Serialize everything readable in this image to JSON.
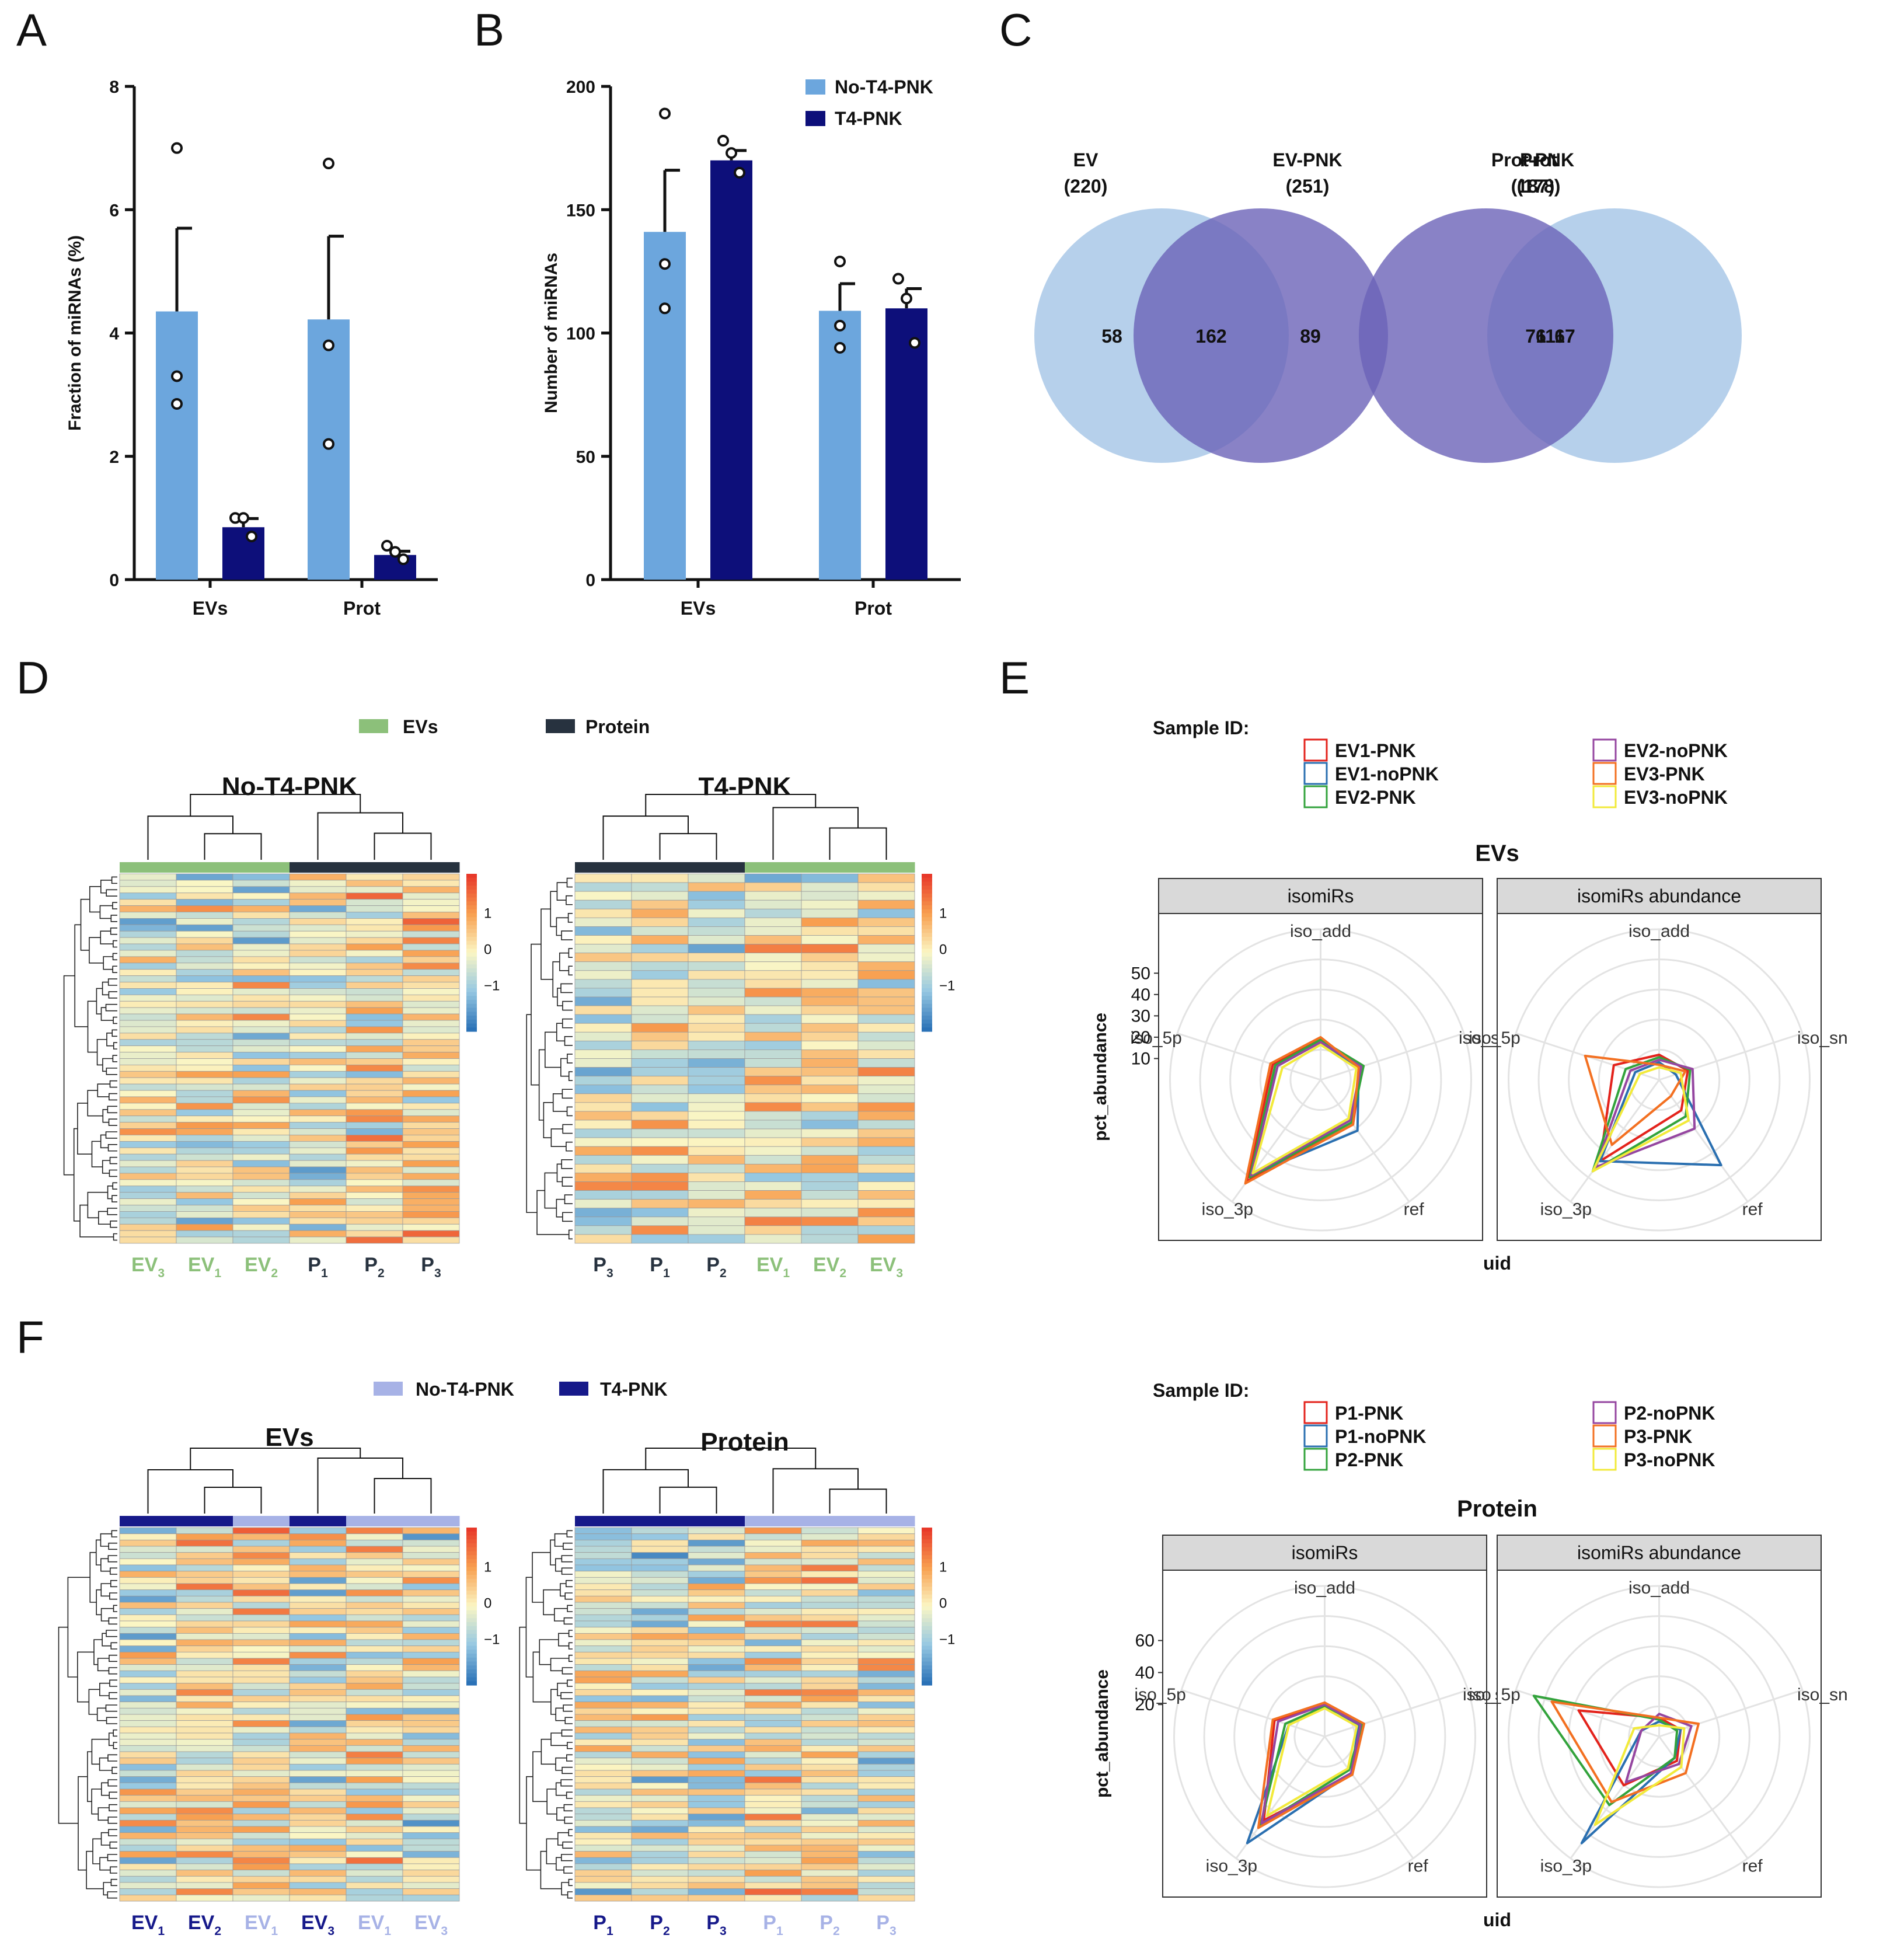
{
  "colors": {
    "light_blue": "#6ca6dd",
    "navy": "#0d0f7a",
    "ev_green": "#8cc07a",
    "protein_dark": "#27323f",
    "venn_left": "#a9c8e7",
    "venn_right": "#6b63b8",
    "nopnk_light": "#a7b2e6",
    "pnk_dark": "#16198a",
    "heat_high": "#e8392a",
    "heat_mid": "#fbf6c4",
    "heat_low": "#2b72b7",
    "series": {
      "EV1-PNK": "#e3231c",
      "EV1-noPNK": "#2a6fb0",
      "EV2-PNK": "#33a33c",
      "EV2-noPNK": "#9546a0",
      "EV3-PNK": "#f37021",
      "EV3-noPNK": "#f2ea3a",
      "P1-PNK": "#e3231c",
      "P1-noPNK": "#2a6fb0",
      "P2-PNK": "#33a33c",
      "P2-noPNK": "#9546a0",
      "P3-PNK": "#f37021",
      "P3-noPNK": "#f2ea3a"
    }
  },
  "panel_labels": [
    "A",
    "B",
    "C",
    "D",
    "E",
    "F"
  ],
  "chart_data": [
    {
      "id": "A",
      "type": "bar",
      "categories": [
        "EVs",
        "Prot"
      ],
      "series": [
        {
          "name": "No-T4-PNK",
          "values": [
            4.35,
            4.22
          ],
          "sem": [
            1.35,
            1.35
          ],
          "points": [
            [
              7.0,
              3.3,
              2.85
            ],
            [
              6.75,
              3.8,
              2.2
            ]
          ]
        },
        {
          "name": "T4-PNK",
          "values": [
            0.85,
            0.4
          ],
          "sem": [
            0.14,
            0.06
          ],
          "points": [
            [
              1.0,
              1.0,
              0.7
            ],
            [
              0.55,
              0.45,
              0.33
            ]
          ]
        }
      ],
      "ylabel": "Fraction of miRNAs (%)",
      "ylim": [
        0,
        8
      ],
      "yticks": [
        0,
        2,
        4,
        6,
        8
      ]
    },
    {
      "id": "B",
      "type": "bar",
      "categories": [
        "EVs",
        "Prot"
      ],
      "series": [
        {
          "name": "No-T4-PNK",
          "values": [
            141,
            109
          ],
          "sem": [
            25,
            11
          ],
          "points": [
            [
              189,
              128,
              110
            ],
            [
              129,
              103,
              94
            ]
          ]
        },
        {
          "name": "T4-PNK",
          "values": [
            170,
            110
          ],
          "sem": [
            4,
            8
          ],
          "points": [
            [
              178,
              173,
              165
            ],
            [
              122,
              114,
              96
            ]
          ]
        }
      ],
      "ylabel": "Number of  miRNAs",
      "ylim": [
        0,
        200
      ],
      "yticks": [
        0,
        50,
        100,
        150,
        200
      ],
      "legend": [
        "No-T4-PNK",
        "T4-PNK"
      ]
    },
    {
      "id": "C",
      "type": "venn",
      "diagrams": [
        {
          "left_label": "EV",
          "left_total": "(220)",
          "right_label": "EV-PNK",
          "right_total": "(251)",
          "left_only": "58",
          "overlap": "162",
          "right_only": "89"
        },
        {
          "left_label": "Prot",
          "left_total": "(178)",
          "right_label": "Prot-PNK",
          "right_total": "(187)",
          "left_only": "67",
          "overlap": "111",
          "right_only": "76"
        }
      ]
    },
    {
      "id": "D",
      "type": "heatmap",
      "legend": [
        "EVs",
        "Protein"
      ],
      "scale_ticks": [
        "1",
        "0",
        "−1"
      ],
      "maps": [
        {
          "title": "No-T4-PNK",
          "columns": [
            [
              "EV",
              "3"
            ],
            [
              "EV",
              "1"
            ],
            [
              "EV",
              "2"
            ],
            [
              "P",
              "1"
            ],
            [
              "P",
              "2"
            ],
            [
              "P",
              "3"
            ]
          ],
          "groups": [
            "EVs",
            "EVs",
            "EVs",
            "Protein",
            "Protein",
            "Protein"
          ],
          "rows": 58,
          "seed": 11
        },
        {
          "title": "T4-PNK",
          "columns": [
            [
              "P",
              "3"
            ],
            [
              "P",
              "1"
            ],
            [
              "P",
              "2"
            ],
            [
              "EV",
              "1"
            ],
            [
              "EV",
              "2"
            ],
            [
              "EV",
              "3"
            ]
          ],
          "groups": [
            "Protein",
            "Protein",
            "Protein",
            "EVs",
            "EVs",
            "EVs"
          ],
          "rows": 42,
          "seed": 27
        }
      ]
    },
    {
      "id": "E",
      "type": "radar",
      "title": "EVs",
      "legend_title": "Sample ID:",
      "legend": [
        "EV1-PNK",
        "EV1-noPNK",
        "EV2-PNK",
        "EV2-noPNK",
        "EV3-PNK",
        "EV3-noPNK"
      ],
      "axes": [
        "iso_add",
        "iso_snp",
        "ref",
        "iso_3p",
        "iso_5p"
      ],
      "axis_labels": [
        "iso_add",
        "iso_sn",
        "ref",
        "iso_3p",
        "iso_5p"
      ],
      "ylabel": "pct_abundance",
      "xlabel": "uid",
      "rmax": 60,
      "rticks": [
        10,
        20,
        30,
        40,
        50
      ],
      "facets": [
        {
          "title": "isomiRs",
          "series": {
            "EV1-PNK": [
              16,
              17,
              22,
              50,
              20
            ],
            "EV1-noPNK": [
              15,
              16,
              25,
              47,
              19
            ],
            "EV2-PNK": [
              16,
              18,
              21,
              48,
              19
            ],
            "EV2-noPNK": [
              15,
              17,
              20,
              47,
              18
            ],
            "EV3-PNK": [
              17,
              16,
              22,
              51,
              21
            ],
            "EV3-noPNK": [
              14,
              15,
              19,
              46,
              16
            ]
          }
        },
        {
          "title": "isomiRs abundance",
          "series": {
            "EV1-PNK": [
              10,
              12,
              15,
              40,
              19
            ],
            "EV1-noPNK": [
              7,
              7,
              42,
              40,
              10
            ],
            "EV2-PNK": [
              9,
              13,
              18,
              45,
              14
            ],
            "EV2-noPNK": [
              8,
              14,
              24,
              43,
              12
            ],
            "EV3-PNK": [
              6,
              11,
              8,
              32,
              31
            ],
            "EV3-noPNK": [
              5,
              9,
              20,
              45,
              8
            ]
          }
        }
      ]
    },
    {
      "id": "F",
      "type": "heatmap",
      "legend": [
        "No-T4-PNK",
        "T4-PNK"
      ],
      "scale_ticks": [
        "1",
        "0",
        "−1"
      ],
      "maps": [
        {
          "title": "EVs",
          "columns": [
            [
              "EV",
              "1"
            ],
            [
              "EV",
              "2"
            ],
            [
              "EV",
              "1"
            ],
            [
              "EV",
              "3"
            ],
            [
              "EV",
              "1"
            ],
            [
              "EV",
              "3"
            ]
          ],
          "groups": [
            "T4-PNK",
            "T4-PNK",
            "No-T4-PNK",
            "T4-PNK",
            "No-T4-PNK",
            "No-T4-PNK"
          ],
          "rows": 60,
          "seed": 41
        },
        {
          "title": "Protein",
          "columns": [
            [
              "P",
              "1"
            ],
            [
              "P",
              "2"
            ],
            [
              "P",
              "3"
            ],
            [
              "P",
              "1"
            ],
            [
              "P",
              "2"
            ],
            [
              "P",
              "3"
            ]
          ],
          "groups": [
            "T4-PNK",
            "T4-PNK",
            "T4-PNK",
            "No-T4-PNK",
            "No-T4-PNK",
            "No-T4-PNK"
          ],
          "rows": 60,
          "seed": 53
        }
      ]
    },
    {
      "id": "F-radar",
      "type": "radar",
      "title": "Protein",
      "legend_title": "Sample ID:",
      "legend": [
        "P1-PNK",
        "P1-noPNK",
        "P2-PNK",
        "P2-noPNK",
        "P3-PNK",
        "P3-noPNK"
      ],
      "axes": [
        "iso_add",
        "iso_snp",
        "ref",
        "iso_3p",
        "iso_5p"
      ],
      "axis_labels": [
        "iso_add",
        "iso_sn",
        "ref",
        "iso_3p",
        "iso_5p"
      ],
      "ylabel": "pct_abundance",
      "xlabel": "uid",
      "rmax": 80,
      "rticks": [
        20,
        40,
        60
      ],
      "facets": [
        {
          "title": "isomiRs",
          "series": {
            "P1-PNK": [
              18,
              20,
              25,
              55,
              28
            ],
            "P1-noPNK": [
              17,
              19,
              24,
              70,
              20
            ],
            "P2-PNK": [
              16,
              21,
              22,
              58,
              22
            ],
            "P2-noPNK": [
              17,
              20,
              24,
              57,
              26
            ],
            "P3-PNK": [
              18,
              22,
              25,
              60,
              29
            ],
            "P3-noPNK": [
              15,
              18,
              21,
              52,
              20
            ]
          }
        },
        {
          "title": "isomiRs abundance",
          "series": {
            "P1-PNK": [
              10,
              12,
              16,
              32,
              45
            ],
            "P1-noPNK": [
              8,
              12,
              14,
              70,
              10
            ],
            "P2-PNK": [
              9,
              10,
              14,
              45,
              70
            ],
            "P2-noPNK": [
              12,
              18,
              18,
              30,
              10
            ],
            "P3-PNK": [
              10,
              22,
              24,
              43,
              60
            ],
            "P3-noPNK": [
              6,
              14,
              20,
              58,
              14
            ]
          }
        }
      ]
    }
  ]
}
